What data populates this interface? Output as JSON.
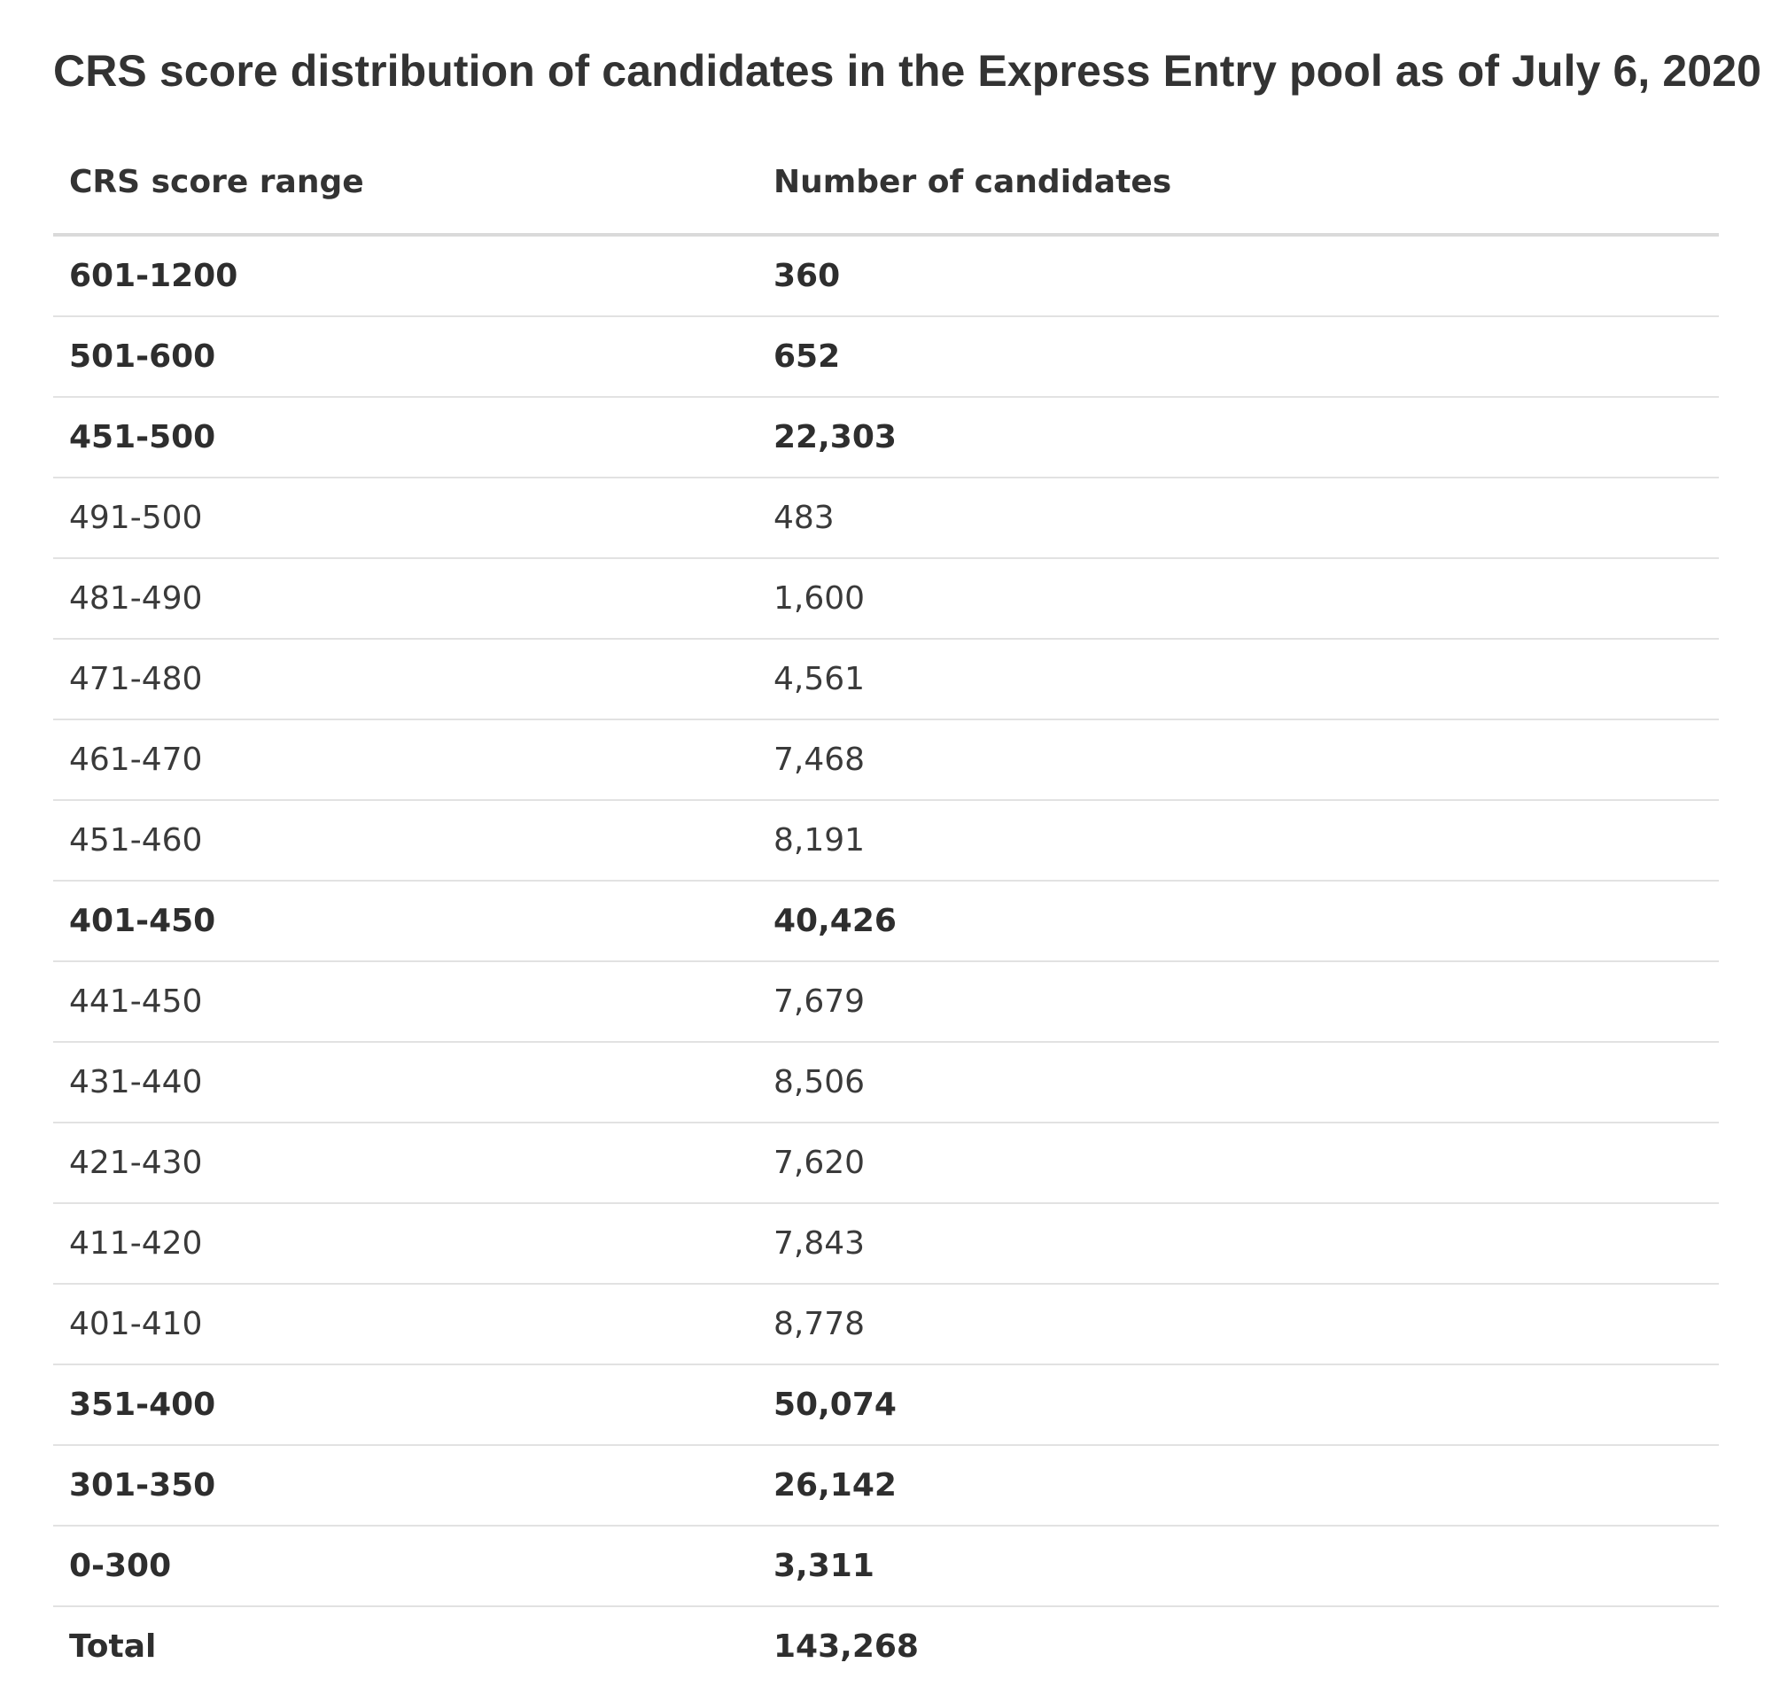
{
  "title": "CRS score distribution of candidates in the Express Entry pool as of July 6, 2020",
  "table": {
    "headers": [
      "CRS score range",
      "Number of candidates"
    ],
    "rows": [
      {
        "range": "601-1200",
        "count": "360",
        "bold": true
      },
      {
        "range": "501-600",
        "count": "652",
        "bold": true
      },
      {
        "range": "451-500",
        "count": "22,303",
        "bold": true
      },
      {
        "range": "491-500",
        "count": "483",
        "bold": false
      },
      {
        "range": "481-490",
        "count": "1,600",
        "bold": false
      },
      {
        "range": "471-480",
        "count": "4,561",
        "bold": false
      },
      {
        "range": "461-470",
        "count": "7,468",
        "bold": false
      },
      {
        "range": "451-460",
        "count": "8,191",
        "bold": false
      },
      {
        "range": "401-450",
        "count": "40,426",
        "bold": true
      },
      {
        "range": "441-450",
        "count": "7,679",
        "bold": false
      },
      {
        "range": "431-440",
        "count": "8,506",
        "bold": false
      },
      {
        "range": "421-430",
        "count": "7,620",
        "bold": false
      },
      {
        "range": "411-420",
        "count": "7,843",
        "bold": false
      },
      {
        "range": "401-410",
        "count": "8,778",
        "bold": false
      },
      {
        "range": "351-400",
        "count": "50,074",
        "bold": true
      },
      {
        "range": "301-350",
        "count": "26,142",
        "bold": true
      },
      {
        "range": "0-300",
        "count": "3,311",
        "bold": true
      },
      {
        "range": "Total",
        "count": "143,268",
        "bold": true
      }
    ]
  },
  "colors": {
    "text": "#333333",
    "divider": "#e2e2e2",
    "header_divider": "#dadada"
  }
}
